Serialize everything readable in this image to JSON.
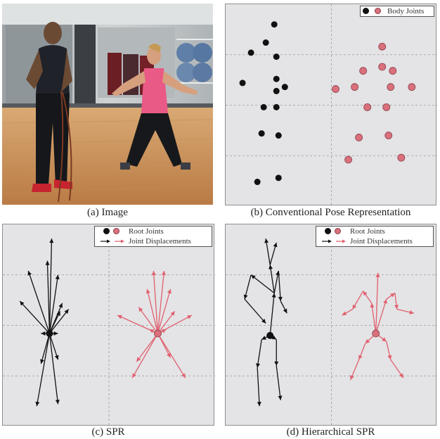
{
  "colors": {
    "primary": "#111111",
    "accent": "#d9707c",
    "accent_stroke": "#e0606e",
    "panel_bg": "#e4e3e6",
    "grid": "#9a9a9a"
  },
  "panels": {
    "a": {
      "caption": "(a) Image"
    },
    "b": {
      "caption": "(b) Conventional Pose Representation",
      "legend": {
        "body_joints": "Body Joints"
      }
    },
    "c": {
      "caption": "(c) SPR",
      "legend": {
        "root_joints": "Root Joints",
        "joint_displacements": "Joint Displacements"
      }
    },
    "d": {
      "caption": "(d) Hierarchical SPR",
      "legend": {
        "root_joints": "Root Joints",
        "joint_displacements": "Joint Displacements"
      }
    }
  },
  "chart_data": [
    {
      "type": "scatter",
      "panel": "b",
      "grid": true,
      "legend_position": "top-right",
      "xlim": [
        0,
        10
      ],
      "ylim": [
        0,
        10
      ],
      "series": [
        {
          "name": "Body Joints",
          "color": "#111111",
          "points": [
            [
              2.3,
              9.0
            ],
            [
              1.9,
              8.1
            ],
            [
              1.2,
              7.6
            ],
            [
              2.4,
              7.4
            ],
            [
              0.8,
              6.1
            ],
            [
              2.4,
              6.3
            ],
            [
              2.4,
              5.7
            ],
            [
              2.8,
              5.9
            ],
            [
              1.8,
              4.9
            ],
            [
              2.4,
              4.9
            ],
            [
              1.7,
              3.6
            ],
            [
              2.5,
              3.5
            ],
            [
              2.5,
              1.4
            ],
            [
              1.5,
              1.2
            ]
          ]
        },
        {
          "name": "Body Joints",
          "color": "#d9707c",
          "points": [
            [
              7.4,
              7.9
            ],
            [
              7.4,
              6.9
            ],
            [
              6.5,
              6.7
            ],
            [
              7.9,
              6.7
            ],
            [
              5.2,
              5.8
            ],
            [
              6.1,
              5.9
            ],
            [
              7.8,
              5.9
            ],
            [
              8.8,
              5.9
            ],
            [
              6.7,
              4.9
            ],
            [
              7.6,
              4.9
            ],
            [
              6.3,
              3.4
            ],
            [
              7.7,
              3.5
            ],
            [
              5.8,
              2.3
            ],
            [
              8.3,
              2.4
            ]
          ]
        }
      ]
    },
    {
      "type": "vector",
      "panel": "c",
      "grid": true,
      "legend_position": "top-right",
      "xlim": [
        0,
        10
      ],
      "ylim": [
        0,
        10
      ],
      "series": [
        {
          "name": "Root Joints",
          "color": "#111111",
          "root": [
            2.2,
            4.6
          ],
          "displacements": [
            [
              2.3,
              9.3
            ],
            [
              2.1,
              8.2
            ],
            [
              1.2,
              7.7
            ],
            [
              2.6,
              7.5
            ],
            [
              0.8,
              6.2
            ],
            [
              2.8,
              6.1
            ],
            [
              2.7,
              5.7
            ],
            [
              3.1,
              5.8
            ],
            [
              1.8,
              4.6
            ],
            [
              2.6,
              4.6
            ],
            [
              1.8,
              3.1
            ],
            [
              2.6,
              3.3
            ],
            [
              2.6,
              1.1
            ],
            [
              1.6,
              1.0
            ]
          ]
        },
        {
          "name": "Root Joints",
          "color": "#d9707c",
          "root": [
            7.3,
            4.6
          ],
          "displacements": [
            [
              7.1,
              7.7
            ],
            [
              7.6,
              7.7
            ],
            [
              6.8,
              6.8
            ],
            [
              7.9,
              6.8
            ],
            [
              5.4,
              5.5
            ],
            [
              6.4,
              5.9
            ],
            [
              8.1,
              5.7
            ],
            [
              8.9,
              5.5
            ],
            [
              6.9,
              4.8
            ],
            [
              7.7,
              4.8
            ],
            [
              6.3,
              3.2
            ],
            [
              7.9,
              3.4
            ],
            [
              6.1,
              2.4
            ],
            [
              8.6,
              2.4
            ]
          ]
        }
      ]
    },
    {
      "type": "vector",
      "panel": "d",
      "grid": true,
      "legend_position": "top-right",
      "xlim": [
        0,
        10
      ],
      "ylim": [
        0,
        10
      ],
      "series": [
        {
          "name": "Root Joints",
          "color": "#111111",
          "root": [
            2.1,
            4.5
          ],
          "segments": [
            [
              [
                2.1,
                4.5
              ],
              [
                2.3,
                6.6
              ]
            ],
            [
              [
                2.3,
                6.6
              ],
              [
                2.1,
                8.0
              ]
            ],
            [
              [
                2.1,
                8.0
              ],
              [
                1.9,
                9.3
              ]
            ],
            [
              [
                2.1,
                8.0
              ],
              [
                2.4,
                9.1
              ]
            ],
            [
              [
                2.3,
                6.6
              ],
              [
                1.2,
                7.5
              ]
            ],
            [
              [
                1.2,
                7.5
              ],
              [
                0.9,
                6.3
              ]
            ],
            [
              [
                0.9,
                6.3
              ],
              [
                1.9,
                5.1
              ]
            ],
            [
              [
                2.3,
                6.6
              ],
              [
                2.5,
                7.7
              ]
            ],
            [
              [
                2.5,
                7.7
              ],
              [
                2.6,
                6.2
              ]
            ],
            [
              [
                2.6,
                6.2
              ],
              [
                2.9,
                5.6
              ]
            ],
            [
              [
                2.1,
                4.5
              ],
              [
                1.7,
                4.3
              ]
            ],
            [
              [
                1.7,
                4.3
              ],
              [
                1.5,
                2.9
              ]
            ],
            [
              [
                1.5,
                2.9
              ],
              [
                1.6,
                1.0
              ]
            ],
            [
              [
                2.1,
                4.5
              ],
              [
                2.4,
                4.3
              ]
            ],
            [
              [
                2.4,
                4.3
              ],
              [
                2.4,
                3.0
              ]
            ],
            [
              [
                2.4,
                3.0
              ],
              [
                2.6,
                1.3
              ]
            ]
          ]
        },
        {
          "name": "Root Joints",
          "color": "#d9707c",
          "root": [
            7.1,
            4.6
          ],
          "segments": [
            [
              [
                7.1,
                4.6
              ],
              [
                7.2,
                7.6
              ]
            ],
            [
              [
                7.1,
                4.6
              ],
              [
                6.9,
                6.1
              ]
            ],
            [
              [
                6.9,
                6.1
              ],
              [
                6.5,
                6.7
              ]
            ],
            [
              [
                6.5,
                6.7
              ],
              [
                6.0,
                5.8
              ]
            ],
            [
              [
                6.0,
                5.8
              ],
              [
                5.5,
                5.5
              ]
            ],
            [
              [
                7.1,
                4.6
              ],
              [
                7.6,
                6.3
              ]
            ],
            [
              [
                7.6,
                6.3
              ],
              [
                8.0,
                6.6
              ]
            ],
            [
              [
                8.0,
                6.6
              ],
              [
                8.1,
                5.8
              ]
            ],
            [
              [
                8.1,
                5.8
              ],
              [
                8.9,
                5.6
              ]
            ],
            [
              [
                7.1,
                4.6
              ],
              [
                6.6,
                4.1
              ]
            ],
            [
              [
                6.6,
                4.1
              ],
              [
                6.3,
                3.3
              ]
            ],
            [
              [
                6.3,
                3.3
              ],
              [
                5.9,
                2.3
              ]
            ],
            [
              [
                7.1,
                4.6
              ],
              [
                7.6,
                4.2
              ]
            ],
            [
              [
                7.6,
                4.2
              ],
              [
                7.8,
                3.3
              ]
            ],
            [
              [
                7.8,
                3.3
              ],
              [
                8.4,
                2.4
              ]
            ]
          ]
        }
      ]
    }
  ]
}
